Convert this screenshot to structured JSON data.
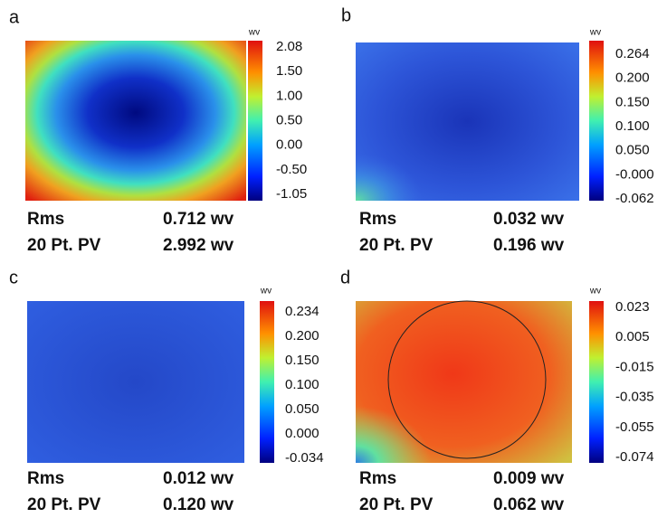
{
  "panels": [
    {
      "label": "a",
      "unit": "wv",
      "ticks": [
        "2.08",
        "1.50",
        "1.00",
        "0.50",
        "0.00",
        "-0.50",
        "-1.05"
      ],
      "stats": [
        {
          "name": "Rms",
          "value": "0.712 wv"
        },
        {
          "name": "20 Pt. PV",
          "value": "2.992 wv"
        }
      ]
    },
    {
      "label": "b",
      "unit": "wv",
      "ticks": [
        "0.264",
        "0.200",
        "0.150",
        "0.100",
        "0.050",
        "-0.000",
        "-0.062"
      ],
      "stats": [
        {
          "name": "Rms",
          "value": "0.032 wv"
        },
        {
          "name": "20 Pt. PV",
          "value": "0.196 wv"
        }
      ]
    },
    {
      "label": "c",
      "unit": "wv",
      "ticks": [
        "0.234",
        "0.200",
        "0.150",
        "0.100",
        "0.050",
        "0.000",
        "-0.034"
      ],
      "stats": [
        {
          "name": "Rms",
          "value": "0.012 wv"
        },
        {
          "name": "20 Pt. PV",
          "value": "0.120 wv"
        }
      ]
    },
    {
      "label": "d",
      "unit": "wv",
      "ticks": [
        "0.023",
        "0.005",
        "-0.015",
        "-0.035",
        "-0.055",
        "-0.074"
      ],
      "stats": [
        {
          "name": "Rms",
          "value": "0.009 wv"
        },
        {
          "name": "20 Pt. PV",
          "value": "0.062 wv"
        }
      ]
    }
  ]
}
